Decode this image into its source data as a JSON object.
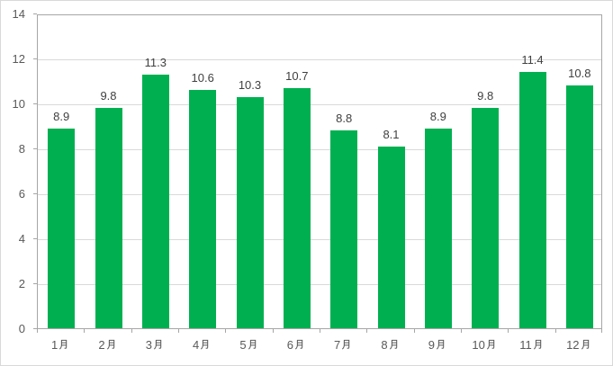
{
  "page": {
    "background": "#ffffff",
    "frame_border_color": "#d9d9d9"
  },
  "chart_data": {
    "type": "bar",
    "title": "",
    "xlabel": "",
    "ylabel": "",
    "categories": [
      "1月",
      "2月",
      "3月",
      "4月",
      "5月",
      "6月",
      "7月",
      "8月",
      "9月",
      "10月",
      "11月",
      "12月"
    ],
    "values": [
      8.9,
      9.8,
      11.3,
      10.6,
      10.3,
      10.7,
      8.8,
      8.1,
      8.9,
      9.8,
      11.4,
      10.8
    ],
    "data_labels": [
      "8.9",
      "9.8",
      "11.3",
      "10.6",
      "10.3",
      "10.7",
      "8.8",
      "8.1",
      "8.9",
      "9.8",
      "11.4",
      "10.8"
    ],
    "ylim": [
      0,
      14
    ],
    "yticks": [
      0,
      2,
      4,
      6,
      8,
      10,
      12,
      14
    ],
    "grid": true,
    "legend": "none",
    "bar_color": "#00b050",
    "gridline_color": "#d9d9d9",
    "axis_color": "#a6a6a6",
    "tick_label_color": "#595959",
    "value_label_color": "#404040"
  }
}
